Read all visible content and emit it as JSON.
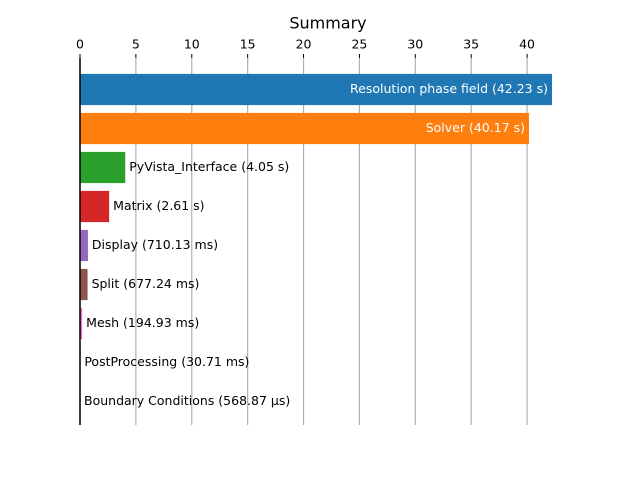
{
  "chart_data": {
    "type": "barh",
    "title": "Summary",
    "values": [
      42.23,
      40.17,
      4.05,
      2.61,
      0.71013,
      0.67724,
      0.19493,
      0.03071,
      0.00056887
    ],
    "value_labels": [
      "Resolution phase field (42.23 s)",
      "Solver (40.17 s)",
      "PyVista_Interface (4.05 s)",
      "Matrix (2.61 s)",
      "Display (710.13 ms)",
      "Split (677.24 ms)",
      "Mesh (194.93 ms)",
      "PostProcessing (30.71 ms)",
      "Boundary Conditions (568.87 µs)"
    ],
    "colors": [
      "#1f77b4",
      "#ff7f0e",
      "#2ca02c",
      "#d62728",
      "#9467bd",
      "#8c564b",
      "#e377c2",
      "#7f7f7f",
      "#bcbd22"
    ],
    "xlim": [
      0,
      42.23
    ],
    "xticks": [
      0,
      5,
      10,
      15,
      20,
      25,
      30,
      35,
      40
    ],
    "grid": true
  }
}
